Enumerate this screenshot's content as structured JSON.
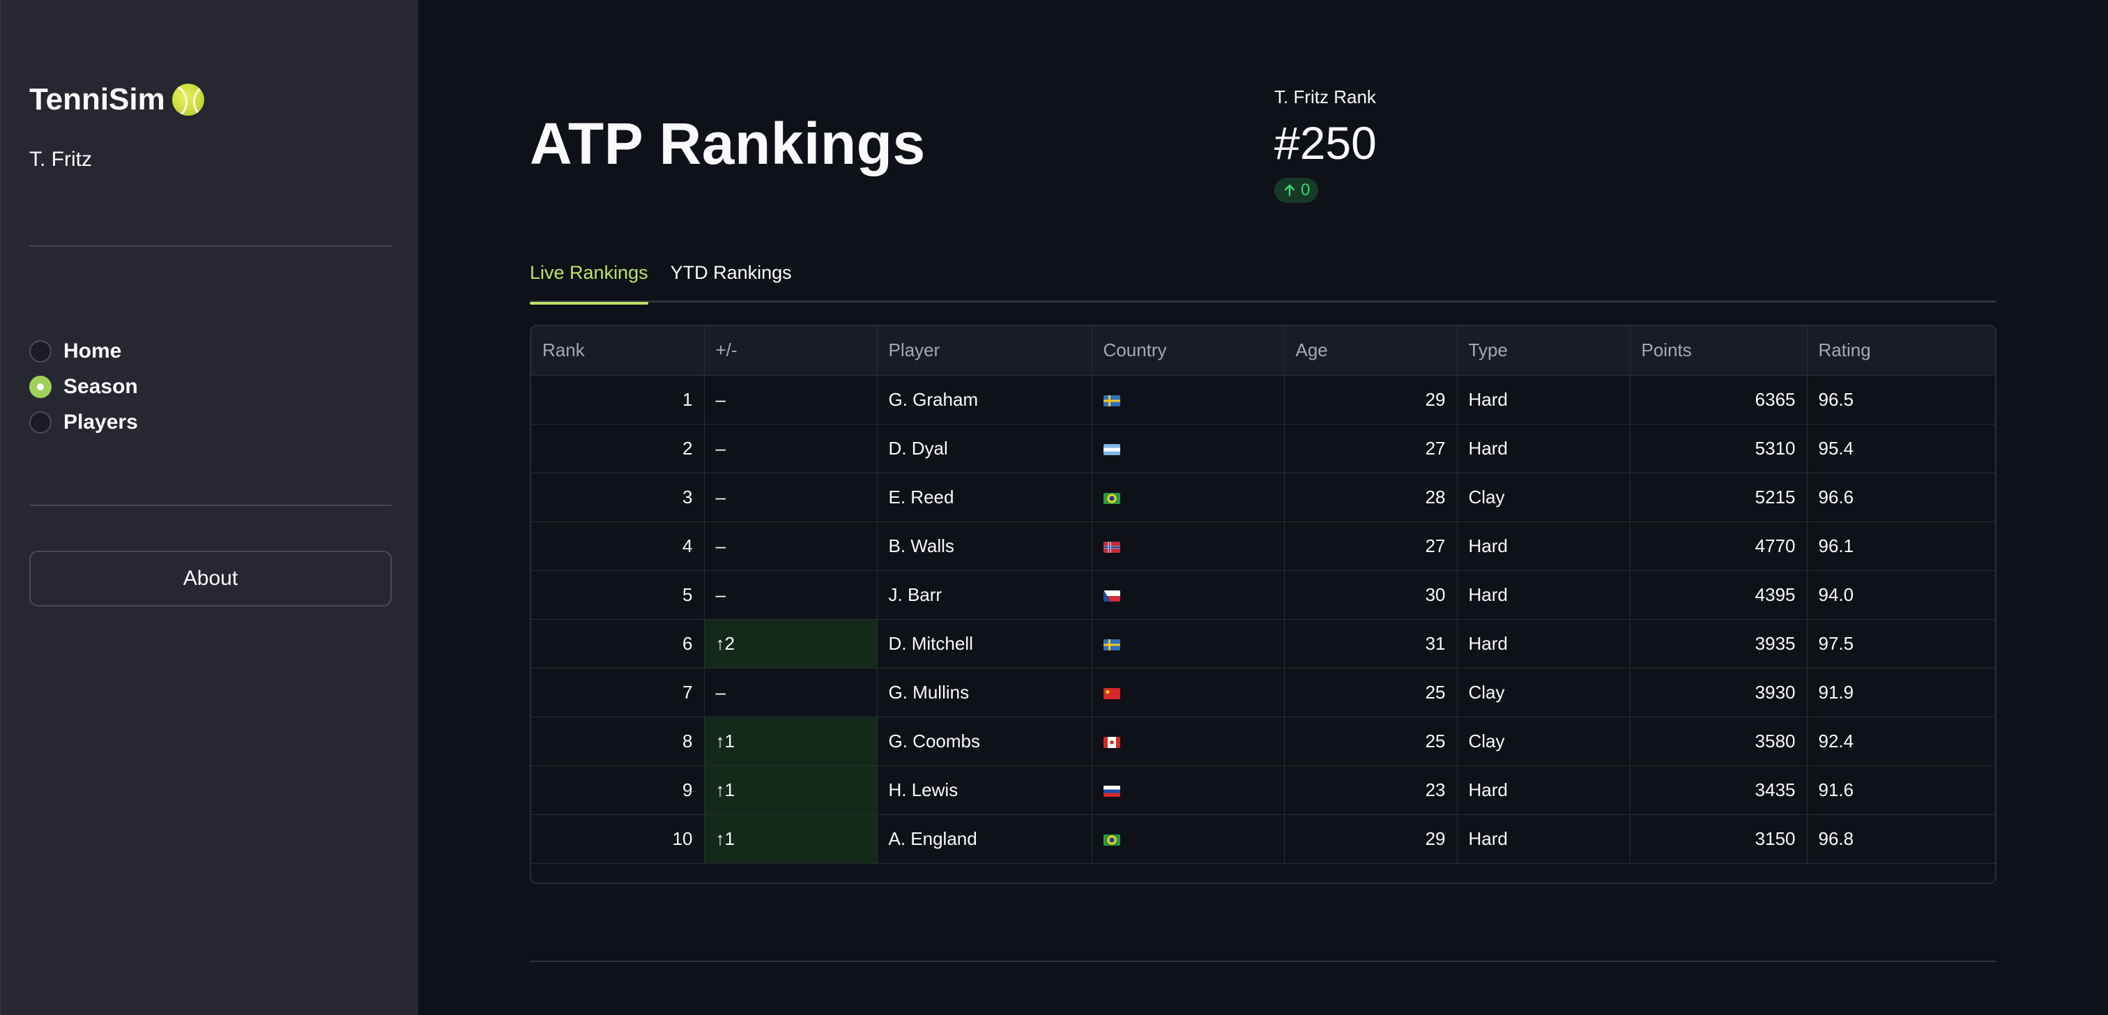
{
  "sidebar": {
    "brand": "TenniSim",
    "brand_icon": "tennis-ball-icon",
    "user": "T. Fritz",
    "nav": [
      {
        "label": "Home",
        "selected": false
      },
      {
        "label": "Season",
        "selected": true
      },
      {
        "label": "Players",
        "selected": false
      }
    ],
    "about_label": "About"
  },
  "main": {
    "title": "ATP Rankings",
    "metric": {
      "label": "T. Fritz Rank",
      "value": "#250",
      "delta": "0",
      "delta_icon": "arrow-up-icon"
    },
    "tabs": [
      {
        "label": "Live Rankings",
        "active": true
      },
      {
        "label": "YTD Rankings",
        "active": false
      }
    ],
    "table": {
      "columns": [
        "Rank",
        "+/-",
        "Player",
        "Country",
        "Age",
        "Type",
        "Points",
        "Rating"
      ],
      "rows": [
        {
          "rank": "1",
          "change": "–",
          "player": "G. Graham",
          "flag": "sweden",
          "age": "29",
          "type": "Hard",
          "points": "6365",
          "rating": "96.5"
        },
        {
          "rank": "2",
          "change": "–",
          "player": "D. Dyal",
          "flag": "argentina",
          "age": "27",
          "type": "Hard",
          "points": "5310",
          "rating": "95.4"
        },
        {
          "rank": "3",
          "change": "–",
          "player": "E. Reed",
          "flag": "brazil",
          "age": "28",
          "type": "Clay",
          "points": "5215",
          "rating": "96.6"
        },
        {
          "rank": "4",
          "change": "–",
          "player": "B. Walls",
          "flag": "norway",
          "age": "27",
          "type": "Hard",
          "points": "4770",
          "rating": "96.1"
        },
        {
          "rank": "5",
          "change": "–",
          "player": "J. Barr",
          "flag": "czechia",
          "age": "30",
          "type": "Hard",
          "points": "4395",
          "rating": "94.0"
        },
        {
          "rank": "6",
          "change": "↑2",
          "player": "D. Mitchell",
          "flag": "sweden",
          "age": "31",
          "type": "Hard",
          "points": "3935",
          "rating": "97.5"
        },
        {
          "rank": "7",
          "change": "–",
          "player": "G. Mullins",
          "flag": "china",
          "age": "25",
          "type": "Clay",
          "points": "3930",
          "rating": "91.9"
        },
        {
          "rank": "8",
          "change": "↑1",
          "player": "G. Coombs",
          "flag": "canada",
          "age": "25",
          "type": "Clay",
          "points": "3580",
          "rating": "92.4"
        },
        {
          "rank": "9",
          "change": "↑1",
          "player": "H. Lewis",
          "flag": "russia",
          "age": "23",
          "type": "Hard",
          "points": "3435",
          "rating": "91.6"
        },
        {
          "rank": "10",
          "change": "↑1",
          "player": "A. England",
          "flag": "brazil",
          "age": "29",
          "type": "Hard",
          "points": "3150",
          "rating": "96.8"
        }
      ]
    }
  },
  "colors": {
    "accent": "#bde36a",
    "radio_selected": "#9ed05a",
    "delta_text": "#3dd56d",
    "delta_bg": "#173928",
    "up_cell_bg": "#13291a"
  }
}
